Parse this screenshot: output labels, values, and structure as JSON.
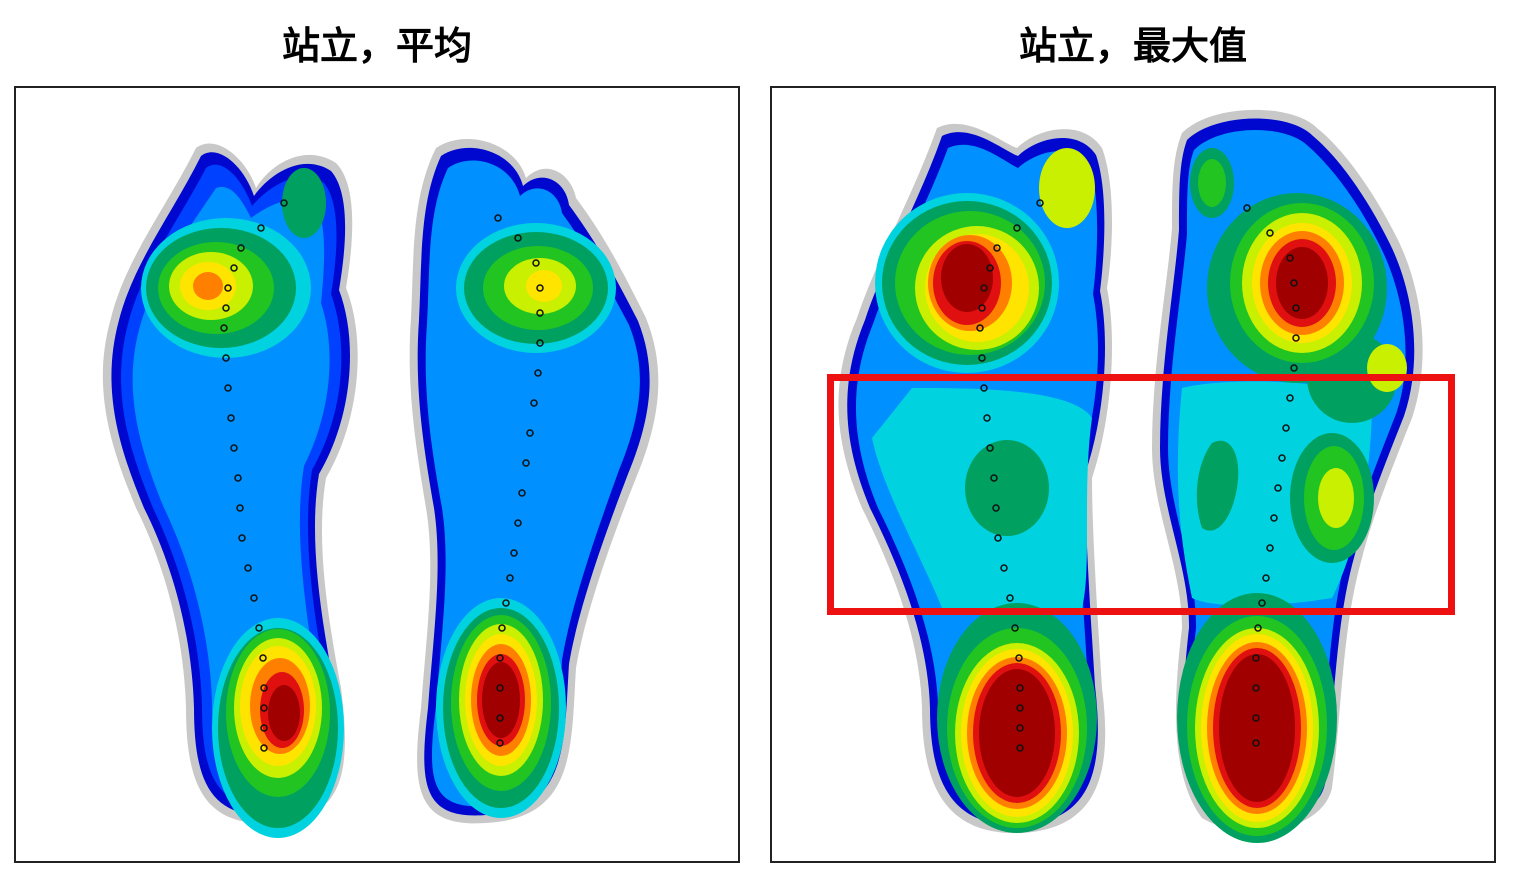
{
  "panels": [
    {
      "title": "站立，平均"
    },
    {
      "title": "站立，最大值"
    }
  ],
  "colors": {
    "background": "#ffffff",
    "frame": "#222222",
    "highlight": "#ee1111",
    "pressure_scale": [
      "#c8c8c8",
      "#0008d0",
      "#0040ff",
      "#0090ff",
      "#00d2e0",
      "#00a060",
      "#22c422",
      "#c8f000",
      "#ffe400",
      "#ff8000",
      "#e01010",
      "#a00000"
    ]
  }
}
